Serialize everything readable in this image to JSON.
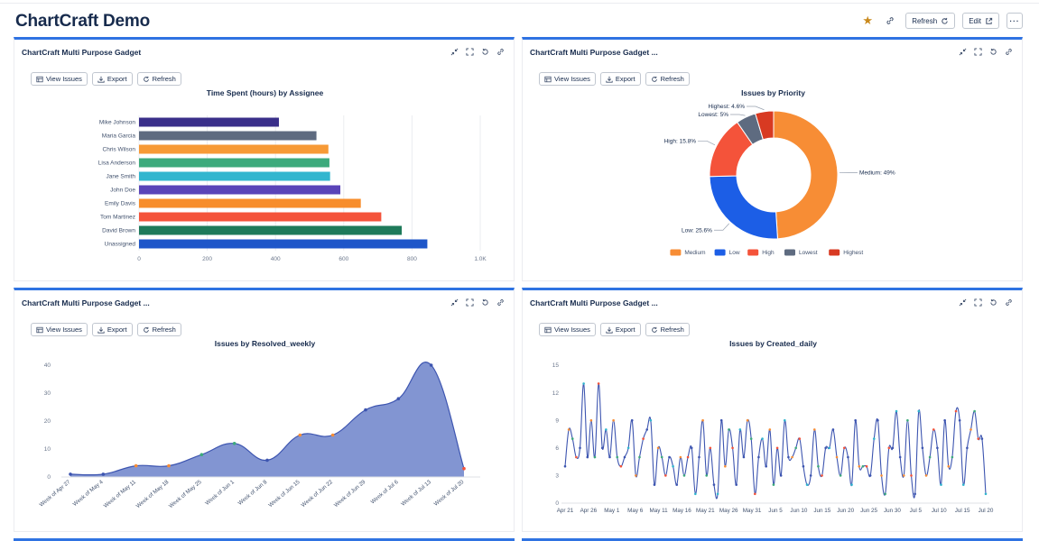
{
  "header": {
    "title": "ChartCraft Demo",
    "refresh_label": "Refresh",
    "edit_label": "Edit",
    "more_label": "···",
    "star_icon": "star-icon",
    "link_icon": "link-icon"
  },
  "toolbar": {
    "view_issues": "View Issues",
    "export": "Export",
    "refresh": "Refresh"
  },
  "colors": {
    "accent": "#2f73e2",
    "area_fill": "#7b8fd0",
    "line": "#3d55b0"
  },
  "gadgets": [
    {
      "title": "ChartCraft Multi Purpose Gadget"
    },
    {
      "title": "ChartCraft Multi Purpose Gadget ..."
    },
    {
      "title": "ChartCraft Multi Purpose Gadget ..."
    },
    {
      "title": "ChartCraft Multi Purpose Gadget ..."
    }
  ],
  "chart_data": [
    {
      "type": "bar",
      "orientation": "horizontal",
      "title": "Time Spent (hours) by Assignee",
      "categories": [
        "Mike Johnson",
        "Maria Garcia",
        "Chris Wilson",
        "Lisa Anderson",
        "Jane Smith",
        "John Doe",
        "Emily Davis",
        "Tom Martinez",
        "David Brown",
        "Unassigned"
      ],
      "values": [
        410,
        520,
        555,
        558,
        560,
        590,
        650,
        710,
        770,
        845
      ],
      "colors": [
        "#3a2f8a",
        "#5e6b80",
        "#f79a36",
        "#3daa7c",
        "#32b6cf",
        "#5a44b8",
        "#f78d2b",
        "#f4533a",
        "#1e7a5a",
        "#1e56c9"
      ],
      "xlim": [
        0,
        1000
      ],
      "xticks": [
        "0",
        "200",
        "400",
        "600",
        "800",
        "1.0K"
      ],
      "grid": true
    },
    {
      "type": "pie",
      "donut": true,
      "title": "Issues by Priority",
      "slices": [
        {
          "name": "Medium",
          "value": 49,
          "label": "Medium: 49%",
          "color": "#f78d35"
        },
        {
          "name": "Low",
          "value": 25.6,
          "label": "Low: 25.6%",
          "color": "#1c5ee6"
        },
        {
          "name": "High",
          "value": 15.8,
          "label": "High: 15.8%",
          "color": "#f4533a"
        },
        {
          "name": "Lowest",
          "value": 5,
          "label": "Lowest: 5%",
          "color": "#5e6b80"
        },
        {
          "name": "Highest",
          "value": 4.6,
          "label": "Highest: 4.6%",
          "color": "#d83a22"
        }
      ],
      "legend": [
        "Medium",
        "Low",
        "High",
        "Lowest",
        "Highest"
      ],
      "legend_position": "bottom"
    },
    {
      "type": "area",
      "title": "Issues by Resolved_weekly",
      "categories": [
        "Week of Apr 27",
        "Week of May 4",
        "Week of May 11",
        "Week of May 18",
        "Week of May 25",
        "Week of Jun 1",
        "Week of Jun 8",
        "Week of Jun 15",
        "Week of Jun 22",
        "Week of Jun 29",
        "Week of Jul 6",
        "Week of Jul 13",
        "Week of Jul 20"
      ],
      "values": [
        1,
        1,
        4,
        4,
        8,
        12,
        6,
        15,
        15,
        24,
        28,
        40,
        3
      ],
      "ylim": [
        0,
        40
      ],
      "yticks": [
        "0",
        "10",
        "20",
        "30",
        "40"
      ],
      "grid": false
    },
    {
      "type": "line",
      "title": "Issues by Created_daily",
      "ylim": [
        0,
        15
      ],
      "yticks": [
        "0",
        "3",
        "6",
        "9",
        "12",
        "15"
      ],
      "xticks": [
        "Apr 21",
        "Apr 26",
        "May 1",
        "May 6",
        "May 11",
        "May 16",
        "May 21",
        "May 26",
        "May 31",
        "Jun 5",
        "Jun 10",
        "Jun 15",
        "Jun 20",
        "Jun 25",
        "Jun 30",
        "Jul 5",
        "Jul 10",
        "Jul 15",
        "Jul 20"
      ],
      "values": [
        4,
        8,
        7,
        5,
        6,
        13,
        5,
        9,
        5,
        13,
        6,
        8,
        5,
        9,
        5,
        4,
        5,
        6,
        9,
        3,
        5,
        7,
        8,
        9,
        2,
        6,
        5,
        3,
        5,
        4,
        2,
        5,
        3,
        5,
        6,
        1,
        5,
        9,
        3,
        6,
        2,
        1,
        9,
        4,
        8,
        6,
        2,
        8,
        5,
        9,
        7,
        1,
        5,
        7,
        4,
        8,
        2,
        6,
        3,
        9,
        5,
        5,
        6,
        7,
        4,
        2,
        3,
        8,
        4,
        3,
        6,
        6,
        8,
        5,
        3,
        6,
        5,
        2,
        9,
        4,
        4,
        4,
        3,
        7,
        9,
        3,
        1,
        6,
        6,
        10,
        5,
        3,
        9,
        3,
        1,
        10,
        6,
        3,
        5,
        8,
        6,
        2,
        9,
        4,
        5,
        10,
        9,
        2,
        6,
        8,
        10,
        7,
        7,
        1
      ]
    }
  ]
}
